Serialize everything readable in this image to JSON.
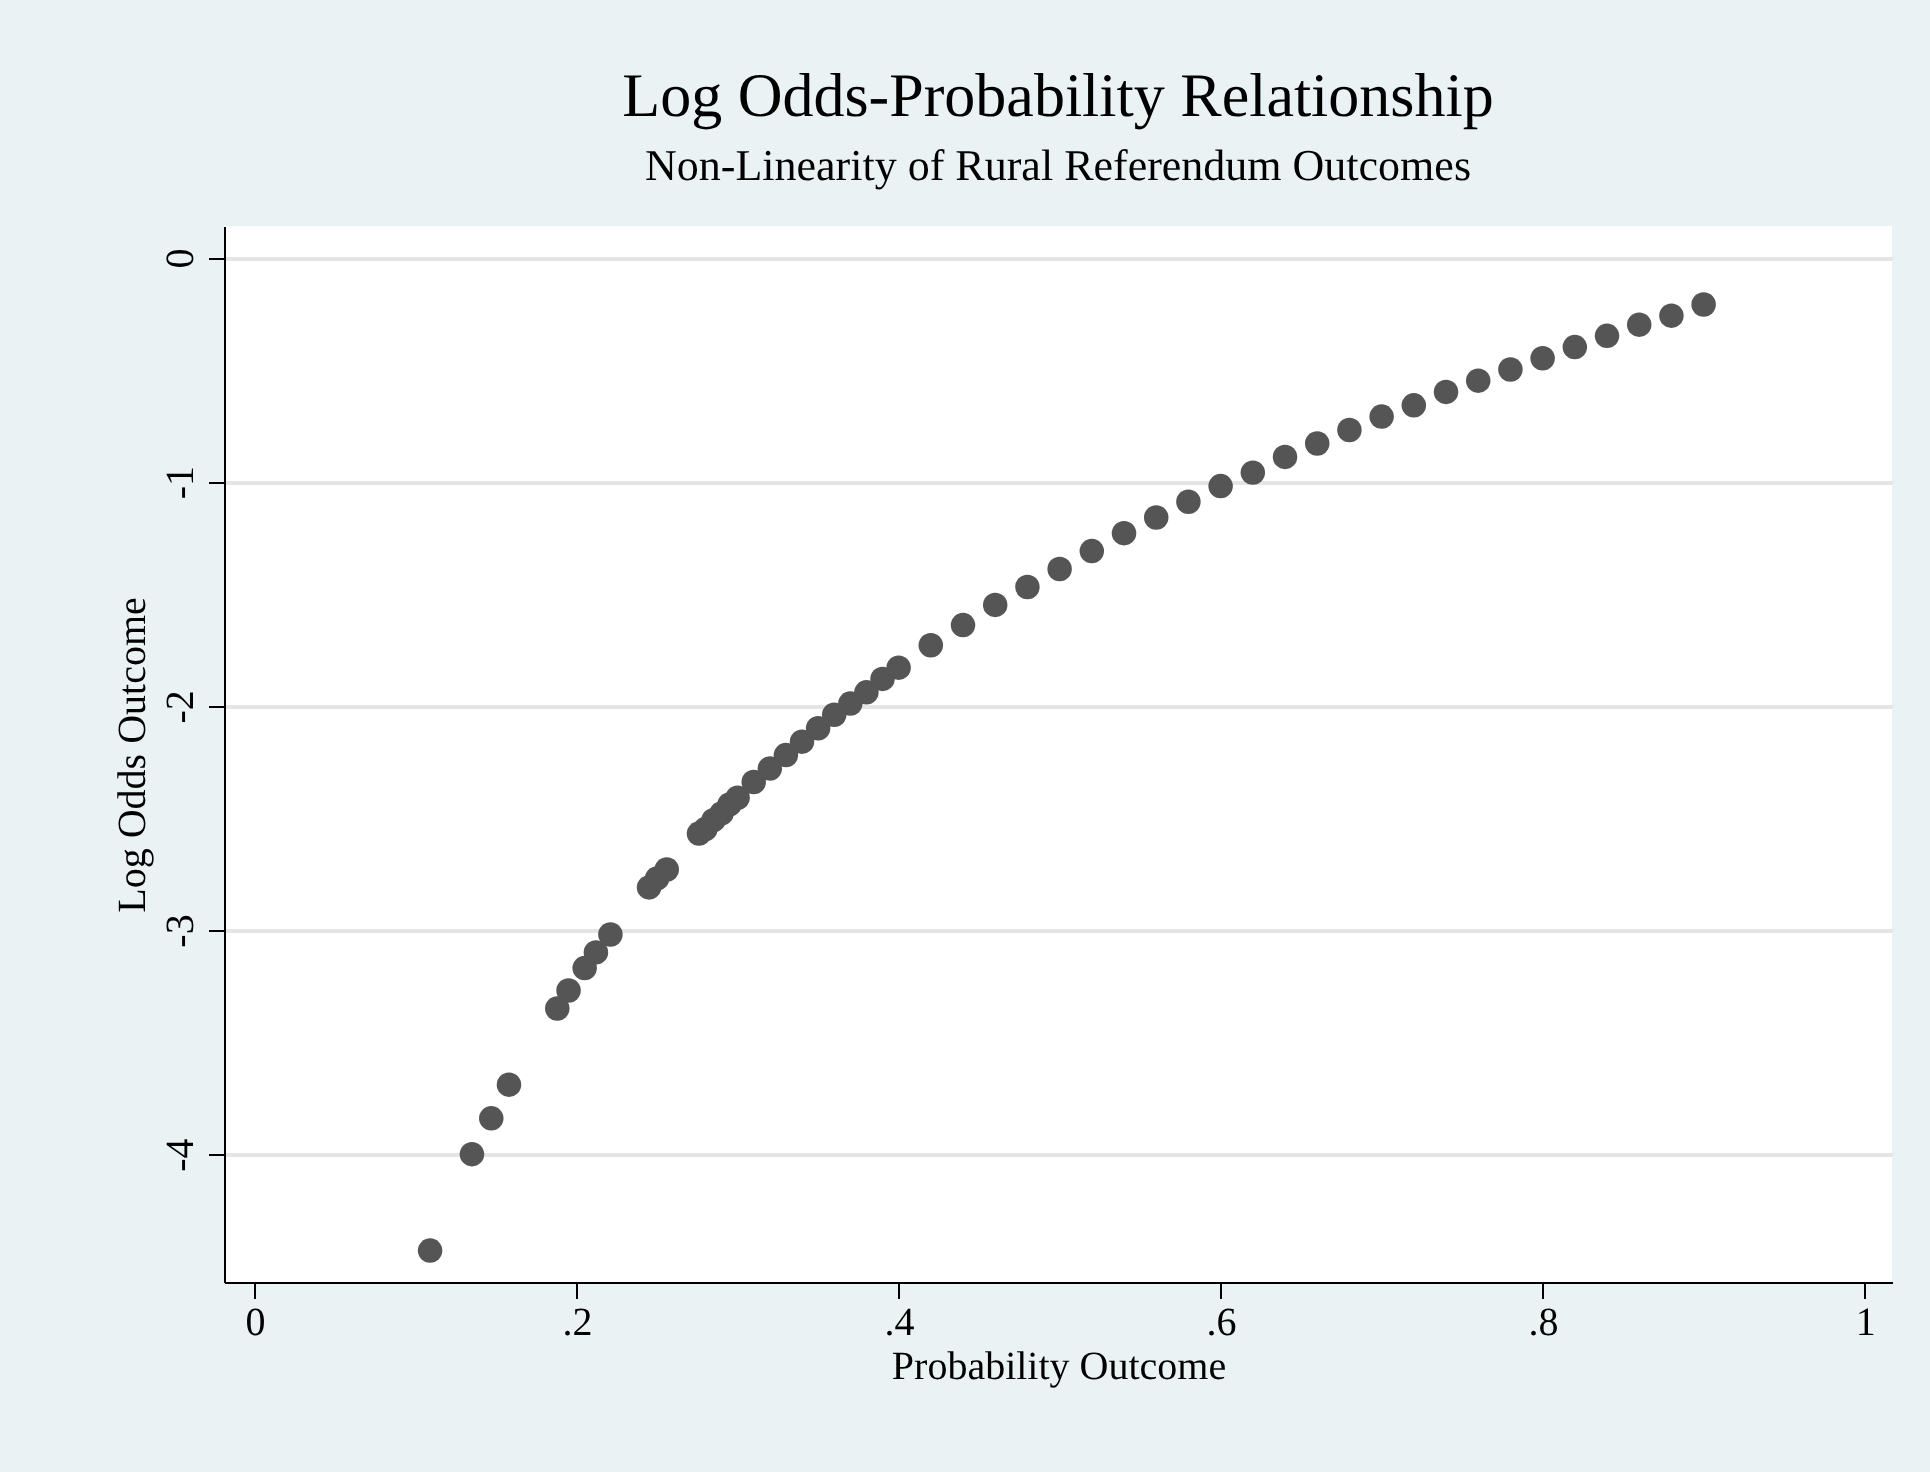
{
  "chart_data": {
    "type": "scatter",
    "title": "Log Odds-Probability Relationship",
    "subtitle": "Non-Linearity of Rural Referendum Outcomes",
    "xlabel": "Probability Outcome",
    "ylabel": "Log Odds Outcome",
    "x": [
      0.109,
      0.135,
      0.147,
      0.158,
      0.188,
      0.195,
      0.205,
      0.212,
      0.221,
      0.245,
      0.25,
      0.256,
      0.276,
      0.28,
      0.285,
      0.29,
      0.295,
      0.3,
      0.31,
      0.32,
      0.33,
      0.34,
      0.35,
      0.36,
      0.37,
      0.38,
      0.39,
      0.4,
      0.42,
      0.44,
      0.46,
      0.48,
      0.5,
      0.52,
      0.54,
      0.56,
      0.58,
      0.6,
      0.62,
      0.64,
      0.66,
      0.68,
      0.7,
      0.72,
      0.74,
      0.76,
      0.78,
      0.8,
      0.82,
      0.84,
      0.86,
      0.88,
      0.9
    ],
    "series": [
      {
        "color": "#555555",
        "values": [
          -4.43,
          -4.0,
          -3.84,
          -3.69,
          -3.35,
          -3.27,
          -3.17,
          -3.1,
          -3.02,
          -2.81,
          -2.77,
          -2.73,
          -2.57,
          -2.55,
          -2.51,
          -2.48,
          -2.44,
          -2.41,
          -2.34,
          -2.28,
          -2.22,
          -2.16,
          -2.1,
          -2.04,
          -1.99,
          -1.94,
          -1.88,
          -1.83,
          -1.73,
          -1.64,
          -1.55,
          -1.47,
          -1.39,
          -1.31,
          -1.23,
          -1.16,
          -1.09,
          -1.02,
          -0.96,
          -0.89,
          -0.83,
          -0.77,
          -0.71,
          -0.66,
          -0.6,
          -0.55,
          -0.5,
          -0.45,
          -0.4,
          -0.35,
          -0.3,
          -0.26,
          -0.21
        ]
      }
    ],
    "xlim": [
      -0.019,
      1.017
    ],
    "ylim": [
      -4.57,
      0.14
    ],
    "xticks": [
      0,
      {
        "value": 0.2,
        "label": ".2"
      },
      {
        "value": 0.4,
        "label": ".4"
      },
      {
        "value": 0.6,
        "label": ".6"
      },
      {
        "value": 0.8,
        "label": ".8"
      },
      1
    ],
    "yticks": [
      0,
      -1,
      -2,
      -3,
      -4
    ],
    "grid": "y",
    "marker": "circle"
  }
}
